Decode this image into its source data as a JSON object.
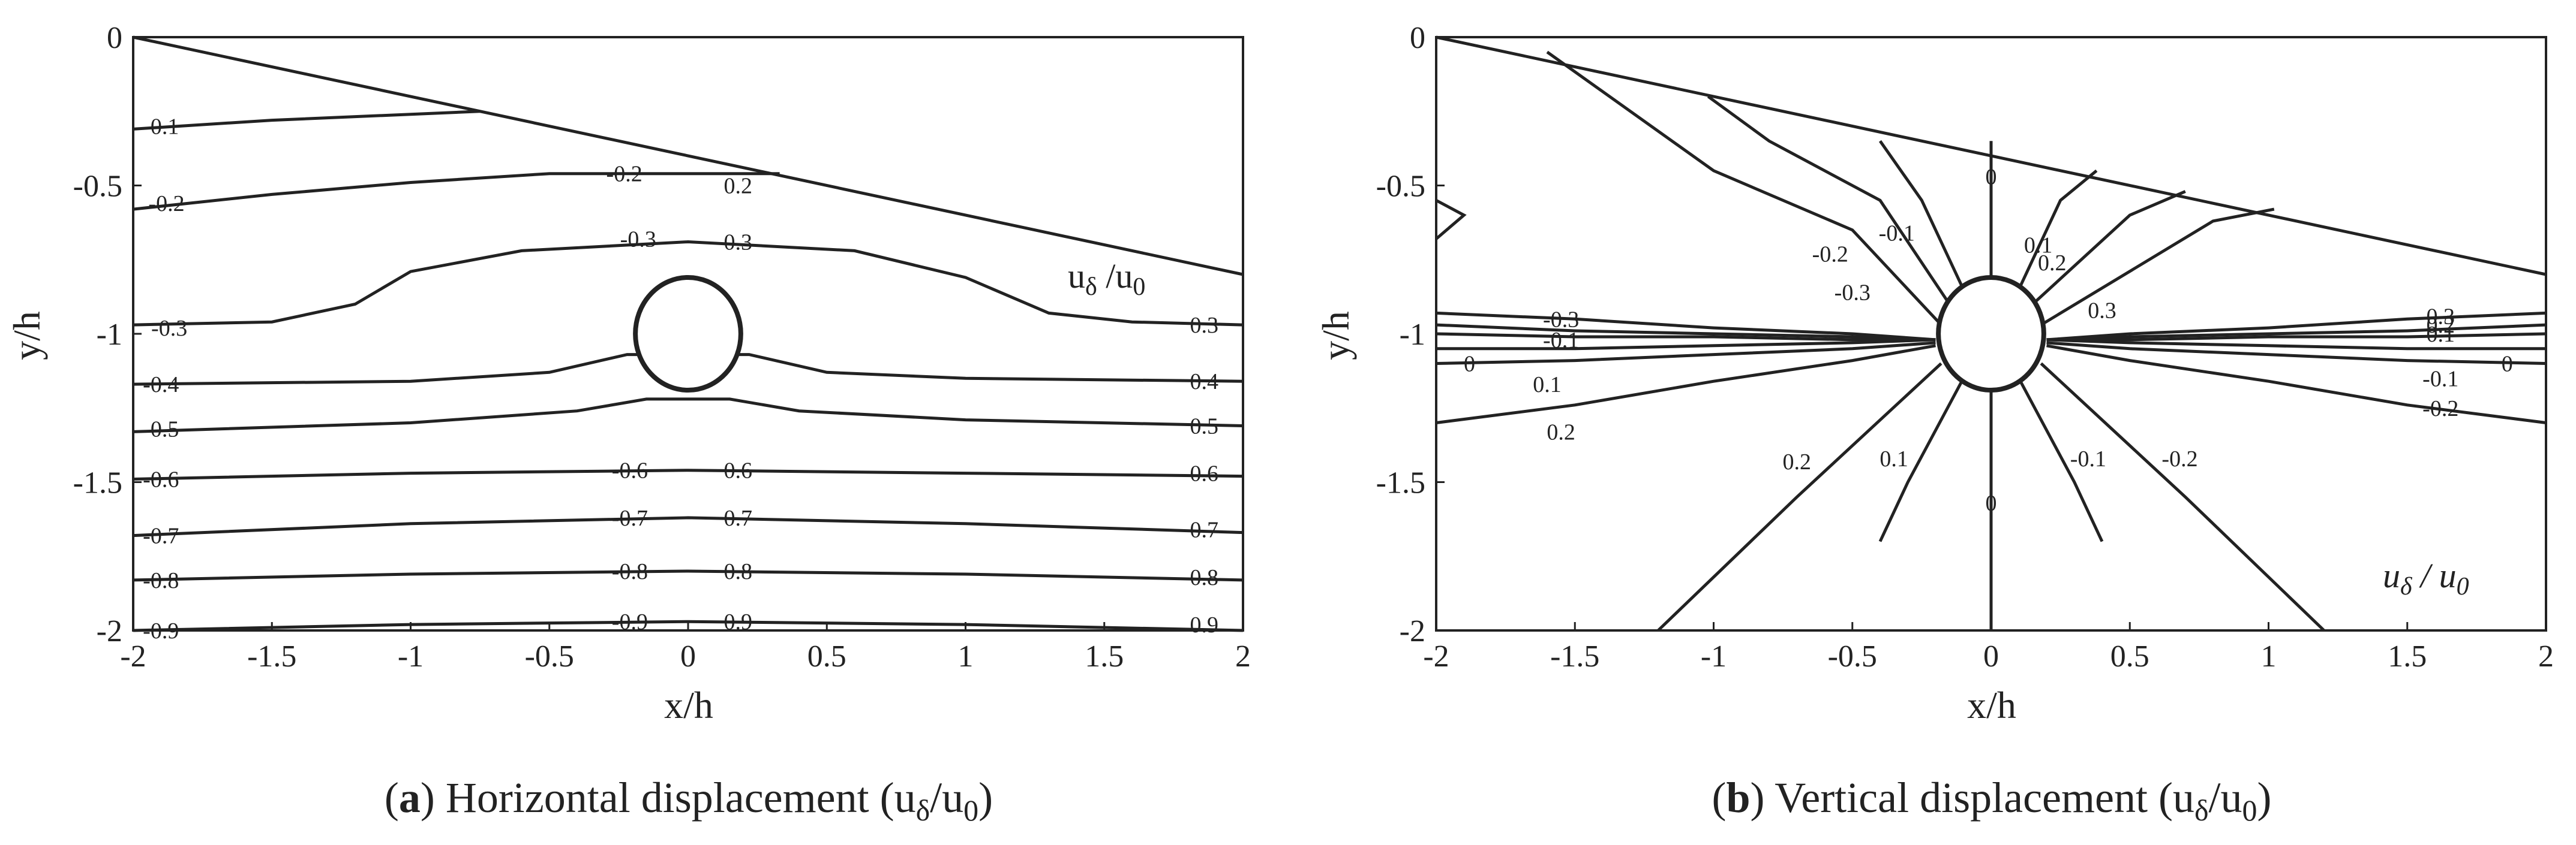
{
  "chart_data": [
    {
      "type": "contour",
      "caption": {
        "letter": "a",
        "text": "Horizontal displacement (u",
        "sub1": "δ",
        "slash": "/u",
        "sub2": "0",
        "close": ")"
      },
      "xlabel": "x/h",
      "ylabel": "y/h",
      "xlim": [
        -2,
        2
      ],
      "ylim": [
        -2,
        0
      ],
      "x_ticks": [
        "-2",
        "-1.5",
        "-1",
        "-0.5",
        "0",
        "0.5",
        "1",
        "1.5",
        "2"
      ],
      "y_ticks": [
        "0",
        "-0.5",
        "-1",
        "-1.5",
        "-2"
      ],
      "annotation": {
        "main": "u",
        "sub": "δ",
        "rest": " /u",
        "sub2": "0"
      },
      "top_boundary": [
        [
          -2,
          0
        ],
        [
          2,
          -0.8
        ]
      ],
      "obstacle": {
        "center": [
          0,
          -1.0
        ],
        "radius": 0.19
      },
      "levels": [
        {
          "value": "-0.1",
          "labels": [
            {
              "x": -1.9,
              "y": -0.3,
              "text": "-0.1"
            }
          ],
          "points": [
            [
              -2,
              -0.31
            ],
            [
              -1.5,
              -0.28
            ],
            [
              -0.75,
              -0.25
            ]
          ]
        },
        {
          "value": "-0.2",
          "labels": [
            {
              "x": -1.88,
              "y": -0.56,
              "text": "-0.2"
            },
            {
              "x": -0.23,
              "y": -0.46,
              "text": "-0.2"
            },
            {
              "x": 0.18,
              "y": -0.5,
              "text": "0.2"
            }
          ],
          "points": [
            [
              -2,
              -0.58
            ],
            [
              -1.5,
              -0.53
            ],
            [
              -1,
              -0.49
            ],
            [
              -0.5,
              -0.46
            ],
            [
              0,
              -0.46
            ],
            [
              0.33,
              -0.46
            ]
          ]
        },
        {
          "value": "-0.3",
          "labels": [
            {
              "x": -1.87,
              "y": -0.98,
              "text": "-0.3"
            },
            {
              "x": -0.18,
              "y": -0.68,
              "text": "-0.3"
            },
            {
              "x": 0.18,
              "y": -0.69,
              "text": "0.3"
            },
            {
              "x": 1.86,
              "y": -0.97,
              "text": "0.3"
            }
          ],
          "points": [
            [
              -2,
              -0.97
            ],
            [
              -1.5,
              -0.96
            ],
            [
              -1.2,
              -0.9
            ],
            [
              -1,
              -0.79
            ],
            [
              -0.6,
              -0.72
            ],
            [
              0,
              -0.69
            ],
            [
              0.6,
              -0.72
            ],
            [
              1,
              -0.81
            ],
            [
              1.3,
              -0.93
            ],
            [
              1.6,
              -0.96
            ],
            [
              2,
              -0.97
            ]
          ]
        },
        {
          "value": "-0.4",
          "labels": [
            {
              "x": -1.9,
              "y": -1.17,
              "text": "-0.4"
            },
            {
              "x": 1.86,
              "y": -1.16,
              "text": "0.4"
            }
          ],
          "points": [
            [
              -2,
              -1.17
            ],
            [
              -1,
              -1.16
            ],
            [
              -0.5,
              -1.13
            ],
            [
              -0.22,
              -1.07
            ],
            [
              0.22,
              -1.07
            ],
            [
              0.5,
              -1.13
            ],
            [
              1,
              -1.15
            ],
            [
              2,
              -1.16
            ]
          ]
        },
        {
          "value": "-0.5",
          "labels": [
            {
              "x": -1.9,
              "y": -1.32,
              "text": "-0.5"
            },
            {
              "x": 1.86,
              "y": -1.31,
              "text": "0.5"
            }
          ],
          "points": [
            [
              -2,
              -1.33
            ],
            [
              -1,
              -1.3
            ],
            [
              -0.4,
              -1.26
            ],
            [
              -0.15,
              -1.22
            ],
            [
              0.15,
              -1.22
            ],
            [
              0.4,
              -1.26
            ],
            [
              1,
              -1.29
            ],
            [
              2,
              -1.31
            ]
          ]
        },
        {
          "value": "-0.6",
          "labels": [
            {
              "x": -1.9,
              "y": -1.49,
              "text": "-0.6"
            },
            {
              "x": -0.21,
              "y": -1.46,
              "text": "-0.6"
            },
            {
              "x": 0.18,
              "y": -1.46,
              "text": "0.6"
            },
            {
              "x": 1.86,
              "y": -1.47,
              "text": "0.6"
            }
          ],
          "points": [
            [
              -2,
              -1.49
            ],
            [
              -1,
              -1.47
            ],
            [
              0,
              -1.46
            ],
            [
              1,
              -1.47
            ],
            [
              2,
              -1.48
            ]
          ]
        },
        {
          "value": "-0.7",
          "labels": [
            {
              "x": -1.9,
              "y": -1.68,
              "text": "-0.7"
            },
            {
              "x": -0.21,
              "y": -1.62,
              "text": "-0.7"
            },
            {
              "x": 0.18,
              "y": -1.62,
              "text": "0.7"
            },
            {
              "x": 1.86,
              "y": -1.66,
              "text": "0.7"
            }
          ],
          "points": [
            [
              -2,
              -1.68
            ],
            [
              -1,
              -1.64
            ],
            [
              0,
              -1.62
            ],
            [
              1,
              -1.64
            ],
            [
              2,
              -1.67
            ]
          ]
        },
        {
          "value": "-0.8",
          "labels": [
            {
              "x": -1.9,
              "y": -1.83,
              "text": "-0.8"
            },
            {
              "x": -0.21,
              "y": -1.8,
              "text": "-0.8"
            },
            {
              "x": 0.18,
              "y": -1.8,
              "text": "0.8"
            },
            {
              "x": 1.86,
              "y": -1.82,
              "text": "0.8"
            }
          ],
          "points": [
            [
              -2,
              -1.83
            ],
            [
              -1,
              -1.81
            ],
            [
              0,
              -1.8
            ],
            [
              1,
              -1.81
            ],
            [
              2,
              -1.83
            ]
          ]
        },
        {
          "value": "-0.9",
          "labels": [
            {
              "x": -1.9,
              "y": -2.0,
              "text": "-0.9"
            },
            {
              "x": -0.21,
              "y": -1.97,
              "text": "-0.9"
            },
            {
              "x": 0.18,
              "y": -1.97,
              "text": "0.9"
            },
            {
              "x": 1.86,
              "y": -1.98,
              "text": "0.9"
            }
          ],
          "points": [
            [
              -2,
              -2.0
            ],
            [
              -1,
              -1.98
            ],
            [
              0,
              -1.97
            ],
            [
              1,
              -1.98
            ],
            [
              2,
              -2.0
            ]
          ]
        }
      ]
    },
    {
      "type": "contour",
      "caption": {
        "letter": "b",
        "text": "Vertical displacement (u",
        "sub1": "δ",
        "slash": "/u",
        "sub2": "0",
        "close": ")"
      },
      "xlabel": "x/h",
      "ylabel": "y/h",
      "xlim": [
        -2,
        2
      ],
      "ylim": [
        -2,
        0
      ],
      "x_ticks": [
        "-2",
        "-1.5",
        "-1",
        "-0.5",
        "0",
        "0.5",
        "1",
        "1.5",
        "2"
      ],
      "y_ticks": [
        "0",
        "-0.5",
        "-1",
        "-1.5",
        "-2"
      ],
      "annotation": {
        "main": "u",
        "sub": "δ",
        "rest": " / u",
        "sub2": "0"
      },
      "top_boundary": [
        [
          -2,
          0
        ],
        [
          2,
          -0.8
        ]
      ],
      "obstacle": {
        "center": [
          0,
          -1.0
        ],
        "radius": 0.19
      },
      "levels": [
        {
          "value": "-0.3",
          "labels": [
            {
              "x": -1.55,
              "y": -0.95,
              "text": "-0.3"
            },
            {
              "x": -0.5,
              "y": -0.86,
              "text": "-0.3"
            },
            {
              "x": 1.62,
              "y": -0.94,
              "text": "0.3"
            },
            {
              "x": 0.4,
              "y": -0.92,
              "text": "0.3"
            }
          ],
          "points": [
            [
              -2,
              -0.93
            ],
            [
              -1.5,
              -0.95
            ],
            [
              -1,
              -0.98
            ],
            [
              -0.5,
              -1.0
            ],
            [
              -0.2,
              -1.02
            ]
          ]
        },
        {
          "value": "-0.2",
          "labels": [
            {
              "x": -0.58,
              "y": -0.73,
              "text": "-0.2"
            },
            {
              "x": 0.22,
              "y": -0.76,
              "text": "0.2"
            },
            {
              "x": 1.62,
              "y": -0.97,
              "text": "0.2"
            }
          ],
          "points": [
            [
              -2,
              -0.97
            ],
            [
              -1.5,
              -0.99
            ],
            [
              -1,
              -1.0
            ],
            [
              -0.5,
              -1.01
            ],
            [
              -0.2,
              -1.02
            ]
          ]
        },
        {
          "value": "-0.1",
          "labels": [
            {
              "x": -0.34,
              "y": -0.66,
              "text": "-0.1"
            },
            {
              "x": 0.17,
              "y": -0.7,
              "text": "0.1"
            },
            {
              "x": 1.62,
              "y": -1.0,
              "text": "0.1"
            },
            {
              "x": -1.55,
              "y": -1.02,
              "text": "-0.1"
            }
          ],
          "points": [
            [
              -2,
              -1.0
            ],
            [
              -1.5,
              -1.01
            ],
            [
              -1,
              -1.01
            ],
            [
              -0.5,
              -1.02
            ],
            [
              -0.2,
              -1.02
            ]
          ]
        },
        {
          "value": "0",
          "labels": [
            {
              "x": -1.88,
              "y": -1.1,
              "text": "0"
            },
            {
              "x": 1.86,
              "y": -1.1,
              "text": "0"
            },
            {
              "x": 0.0,
              "y": -0.47,
              "text": "0"
            },
            {
              "x": 0.0,
              "y": -1.57,
              "text": "0"
            }
          ],
          "points": [
            [
              -2,
              -1.05
            ],
            [
              -1.5,
              -1.05
            ],
            [
              -1,
              -1.04
            ],
            [
              -0.5,
              -1.03
            ],
            [
              -0.2,
              -1.02
            ]
          ]
        },
        {
          "value": "0.1",
          "labels": [
            {
              "x": -1.6,
              "y": -1.17,
              "text": "0.1"
            },
            {
              "x": -0.35,
              "y": -1.42,
              "text": "0.1"
            },
            {
              "x": 1.62,
              "y": -1.15,
              "text": "-0.1"
            },
            {
              "x": 0.35,
              "y": -1.42,
              "text": "-0.1"
            }
          ],
          "points": [
            [
              -2,
              -1.1
            ],
            [
              -1.5,
              -1.09
            ],
            [
              -1,
              -1.07
            ],
            [
              -0.5,
              -1.05
            ],
            [
              -0.2,
              -1.03
            ]
          ]
        },
        {
          "value": "0.2",
          "labels": [
            {
              "x": -1.55,
              "y": -1.33,
              "text": "0.2"
            },
            {
              "x": -0.7,
              "y": -1.43,
              "text": "0.2"
            },
            {
              "x": 1.62,
              "y": -1.25,
              "text": "-0.2"
            },
            {
              "x": 0.68,
              "y": -1.42,
              "text": "-0.2"
            }
          ],
          "points": [
            [
              -2,
              -1.3
            ],
            [
              -1.5,
              -1.24
            ],
            [
              -1,
              -1.16
            ],
            [
              -0.5,
              -1.09
            ],
            [
              -0.2,
              -1.04
            ]
          ]
        }
      ]
    }
  ]
}
